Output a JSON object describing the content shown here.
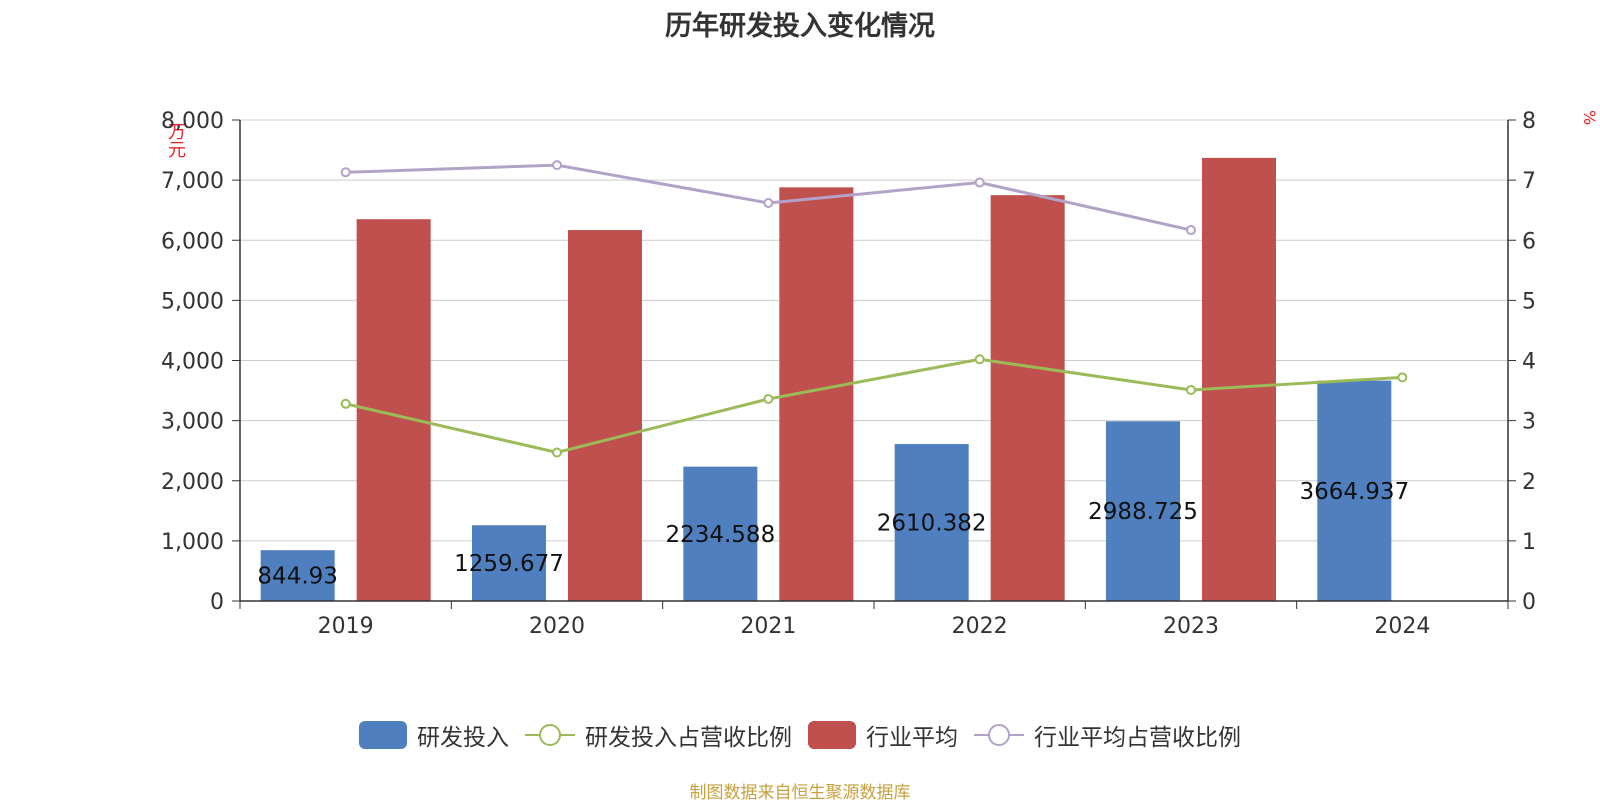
{
  "chart_data": {
    "type": "bar",
    "title": "历年研发投入变化情况",
    "ylabel_left": "万元",
    "ylabel_right": "%",
    "categories": [
      "2019",
      "2020",
      "2021",
      "2022",
      "2023",
      "2024"
    ],
    "y_left": {
      "min": 0,
      "max": 8000,
      "ticks": [
        "0",
        "1,000",
        "2,000",
        "3,000",
        "4,000",
        "5,000",
        "6,000",
        "7,000",
        "8,000"
      ]
    },
    "y_right": {
      "min": 0,
      "max": 8,
      "ticks": [
        "0",
        "1",
        "2",
        "3",
        "4",
        "5",
        "6",
        "7",
        "8"
      ]
    },
    "grid": true,
    "legend_position": "bottom",
    "series": [
      {
        "name": "研发投入",
        "kind": "bar",
        "axis": "left",
        "color": "#4f7fbf",
        "values": [
          844.93,
          1259.677,
          2234.588,
          2610.382,
          2988.725,
          3664.937
        ],
        "labels": [
          "844.93",
          "1259.677",
          "2234.588",
          "2610.382",
          "2988.725",
          "3664.937"
        ]
      },
      {
        "name": "行业平均",
        "kind": "bar",
        "axis": "left",
        "color": "#c0504d",
        "values": [
          6350,
          6170,
          6880,
          6750,
          7370,
          null
        ]
      },
      {
        "name": "研发投入占营收比例",
        "kind": "line",
        "axis": "right",
        "color": "#9bbb59",
        "values": [
          3.28,
          2.47,
          3.36,
          4.02,
          3.51,
          3.72
        ]
      },
      {
        "name": "行业平均占营收比例",
        "kind": "line",
        "axis": "right",
        "color": "#b3a2c7",
        "values": [
          7.13,
          7.25,
          6.62,
          6.96,
          6.17,
          null
        ]
      }
    ],
    "source": "制图数据来自恒生聚源数据库"
  }
}
